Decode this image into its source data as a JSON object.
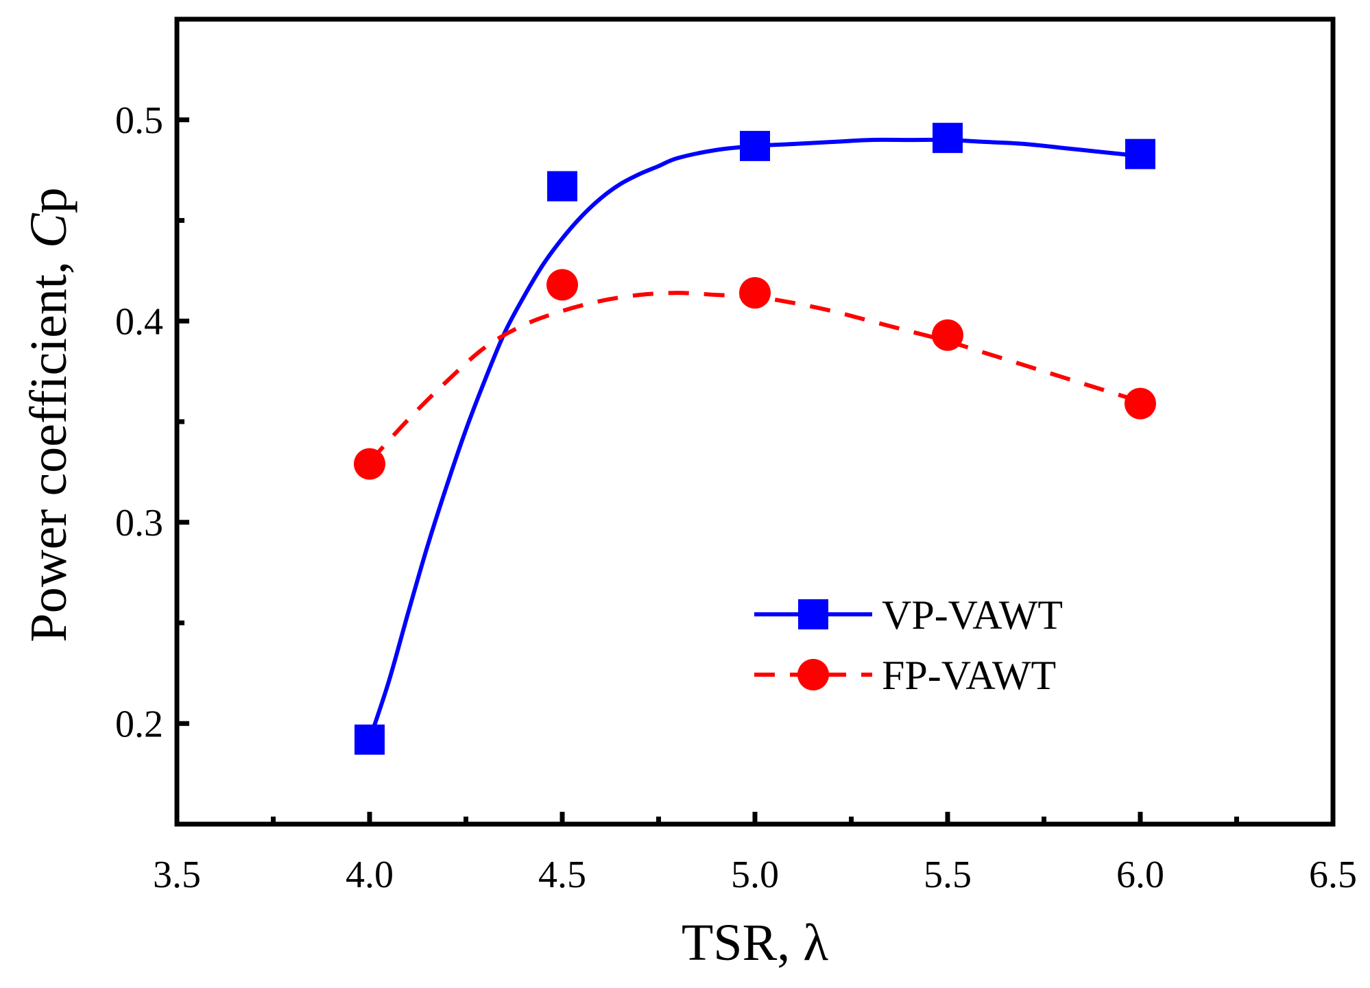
{
  "chart_data": {
    "type": "line",
    "title": "",
    "xlabel": "TSR, λ",
    "ylabel": {
      "main": "Power coefficient, ",
      "italic": "C",
      "rest": "p"
    },
    "xlim": [
      3.5,
      6.5
    ],
    "ylim": [
      0.15,
      0.55
    ],
    "x_ticks": [
      {
        "value": 3.5,
        "label": "3.5"
      },
      {
        "value": 4.0,
        "label": "4.0"
      },
      {
        "value": 4.5,
        "label": "4.5"
      },
      {
        "value": 5.0,
        "label": "5.0"
      },
      {
        "value": 5.5,
        "label": "5.5"
      },
      {
        "value": 6.0,
        "label": "6.0"
      },
      {
        "value": 6.5,
        "label": "6.5"
      }
    ],
    "x_minor_ticks": [
      3.75,
      4.25,
      4.75,
      5.25,
      5.75,
      6.25
    ],
    "y_ticks": [
      {
        "value": 0.2,
        "label": "0.2"
      },
      {
        "value": 0.3,
        "label": "0.3"
      },
      {
        "value": 0.4,
        "label": "0.4"
      },
      {
        "value": 0.5,
        "label": "0.5"
      }
    ],
    "y_minor_ticks": [
      0.25,
      0.35,
      0.45
    ],
    "grid": false,
    "legend_position": "lower-right",
    "series": [
      {
        "name": "VP-VAWT",
        "color": "#0000ff",
        "marker": "square",
        "line_style": "solid",
        "x": [
          4.0,
          4.5,
          5.0,
          5.5,
          6.0
        ],
        "values": [
          0.192,
          0.467,
          0.487,
          0.491,
          0.483
        ],
        "fit_curve": [
          [
            4.0,
            0.192
          ],
          [
            4.05,
            0.221
          ],
          [
            4.1,
            0.255
          ],
          [
            4.15,
            0.288
          ],
          [
            4.2,
            0.318
          ],
          [
            4.25,
            0.346
          ],
          [
            4.3,
            0.371
          ],
          [
            4.35,
            0.394
          ],
          [
            4.4,
            0.412
          ],
          [
            4.45,
            0.428
          ],
          [
            4.5,
            0.441
          ],
          [
            4.55,
            0.452
          ],
          [
            4.6,
            0.461
          ],
          [
            4.65,
            0.468
          ],
          [
            4.7,
            0.473
          ],
          [
            4.75,
            0.477
          ],
          [
            4.8,
            0.481
          ],
          [
            4.9,
            0.485
          ],
          [
            5.0,
            0.487
          ],
          [
            5.1,
            0.488
          ],
          [
            5.2,
            0.489
          ],
          [
            5.3,
            0.49
          ],
          [
            5.4,
            0.49
          ],
          [
            5.5,
            0.49
          ],
          [
            5.6,
            0.489
          ],
          [
            5.7,
            0.488
          ],
          [
            5.8,
            0.486
          ],
          [
            5.9,
            0.484
          ],
          [
            6.0,
            0.482
          ]
        ]
      },
      {
        "name": "FP-VAWT",
        "color": "#ff0000",
        "marker": "circle",
        "line_style": "dashed",
        "x": [
          4.0,
          4.5,
          5.0,
          5.5,
          6.0
        ],
        "values": [
          0.329,
          0.418,
          0.414,
          0.393,
          0.359
        ],
        "fit_curve": [
          [
            4.0,
            0.33
          ],
          [
            4.1,
            0.351
          ],
          [
            4.2,
            0.37
          ],
          [
            4.3,
            0.387
          ],
          [
            4.4,
            0.398
          ],
          [
            4.5,
            0.405
          ],
          [
            4.6,
            0.41
          ],
          [
            4.7,
            0.413
          ],
          [
            4.8,
            0.414
          ],
          [
            4.9,
            0.413
          ],
          [
            5.0,
            0.412
          ],
          [
            5.1,
            0.409
          ],
          [
            5.2,
            0.405
          ],
          [
            5.3,
            0.4
          ],
          [
            5.4,
            0.395
          ],
          [
            5.5,
            0.39
          ],
          [
            5.6,
            0.384
          ],
          [
            5.7,
            0.378
          ],
          [
            5.8,
            0.372
          ],
          [
            5.9,
            0.366
          ],
          [
            6.0,
            0.36
          ]
        ]
      }
    ]
  }
}
